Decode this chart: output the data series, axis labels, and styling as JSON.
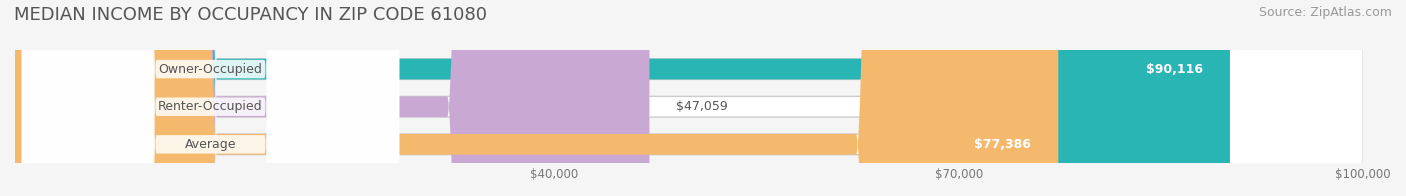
{
  "title": "MEDIAN INCOME BY OCCUPANCY IN ZIP CODE 61080",
  "source": "Source: ZipAtlas.com",
  "categories": [
    "Owner-Occupied",
    "Renter-Occupied",
    "Average"
  ],
  "values": [
    90116,
    47059,
    77386
  ],
  "bar_colors": [
    "#2ab5b5",
    "#c9a8d4",
    "#f5b96e"
  ],
  "value_labels": [
    "$90,116",
    "$47,059",
    "$77,386"
  ],
  "xlim": [
    0,
    100000
  ],
  "xticks": [
    40000,
    70000,
    100000
  ],
  "xticklabels": [
    "$40,000",
    "$70,000",
    "$100,000"
  ],
  "title_fontsize": 13,
  "source_fontsize": 9,
  "bar_height": 0.55,
  "label_fontsize": 9,
  "value_fontsize": 9,
  "background_color": "#f5f5f5",
  "bar_bg_color": "#e8e8e8"
}
